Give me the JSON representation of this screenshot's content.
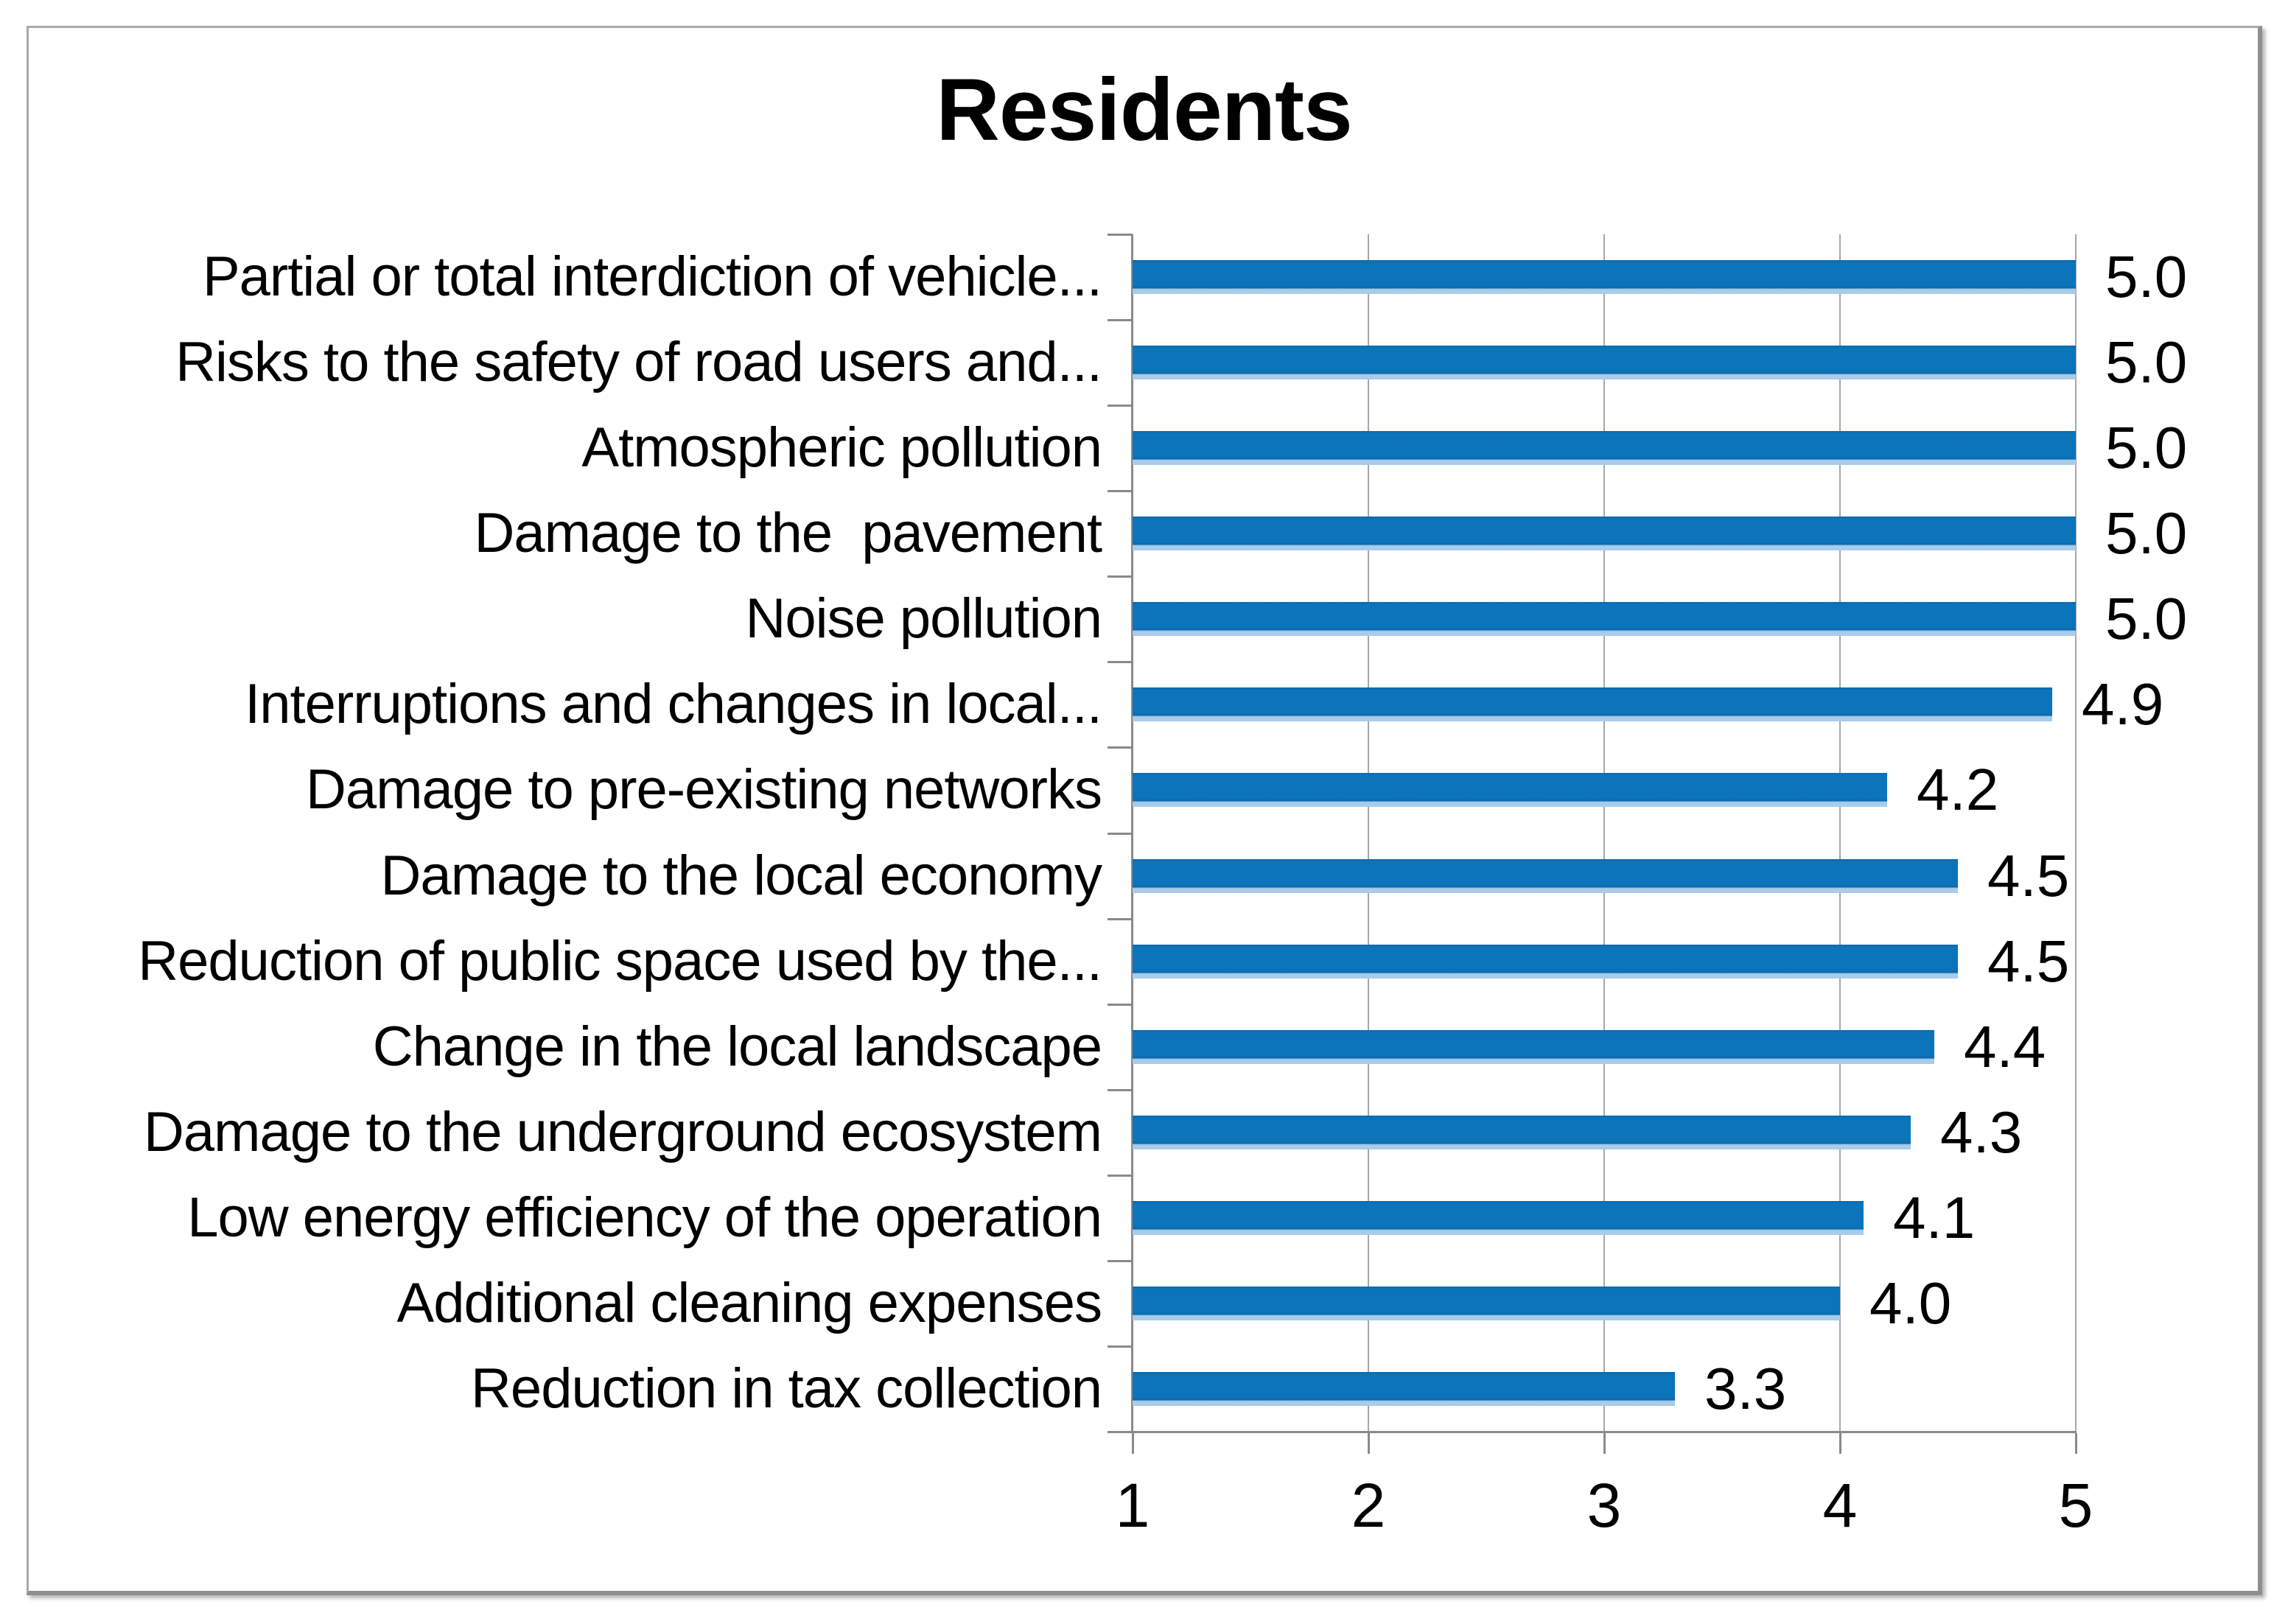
{
  "chart_data": {
    "type": "bar",
    "orientation": "horizontal",
    "title": "Residents",
    "categories": [
      "Partial or total interdiction of vehicle...",
      "Risks to the safety of road users and...",
      "Atmospheric pollution",
      "Damage to the  pavement",
      "Noise pollution",
      "Interruptions and changes in local...",
      "Damage to pre-existing networks",
      "Damage to the local economy",
      "Reduction of public space used by the...",
      "Change in the local landscape",
      "Damage to the underground ecosystem",
      "Low energy efficiency of the operation",
      "Additional cleaning expenses",
      "Reduction in tax collection"
    ],
    "values": [
      5.0,
      5.0,
      5.0,
      5.0,
      5.0,
      4.9,
      4.2,
      4.5,
      4.5,
      4.4,
      4.3,
      4.1,
      4.0,
      3.3
    ],
    "value_labels": [
      "5.0",
      "5.0",
      "5.0",
      "5.0",
      "5.0",
      "4.9",
      "4.2",
      "4.5",
      "4.5",
      "4.4",
      "4.3",
      "4.1",
      "4.0",
      "3.3"
    ],
    "xlim": [
      1,
      5
    ],
    "x_ticks": [
      "1",
      "2",
      "3",
      "4",
      "5"
    ],
    "grid": true,
    "legend": "none",
    "bar_color": "#0B74BA",
    "bar_edge_dark": "#0A68AB",
    "bar_edge_light": "#A9CCE9",
    "axis_color": "#8A8A8A",
    "gridline_color": "#A8A8A8"
  }
}
